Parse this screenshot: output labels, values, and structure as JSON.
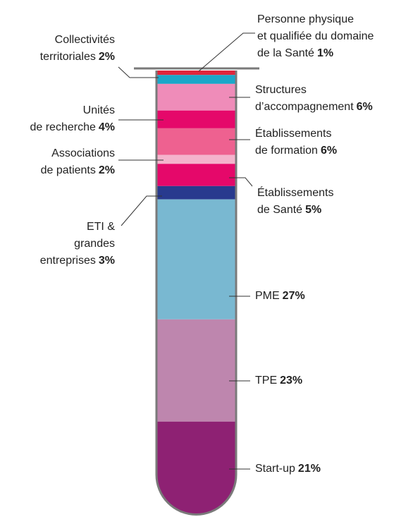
{
  "chart_data": {
    "type": "stacked-tube",
    "categories": [
      [
        "Personne physique",
        "et qualifiée du domaine",
        "de la Santé"
      ],
      [
        "Collectivités",
        "territoriales"
      ],
      [
        "Structures",
        "d’accompagnement"
      ],
      [
        "Unités",
        "de recherche"
      ],
      [
        "Établissements",
        "de formation"
      ],
      [
        "Associations",
        "de patients"
      ],
      [
        "Établissements",
        "de Santé"
      ],
      [
        "ETI &",
        "grandes",
        "entreprises"
      ],
      [
        "PME"
      ],
      [
        "TPE"
      ],
      [
        "Start-up"
      ]
    ],
    "values": [
      1,
      2,
      6,
      4,
      6,
      2,
      5,
      3,
      27,
      23,
      21
    ],
    "value_labels": [
      "1%",
      "2%",
      "6%",
      "4%",
      "6%",
      "2%",
      "5%",
      "3%",
      "27%",
      "23%",
      "21%"
    ],
    "colors": [
      "#e0263c",
      "#1ba7c9",
      "#ef8cb9",
      "#e5086a",
      "#ee6190",
      "#f4b3cc",
      "#e5086a",
      "#283a8e",
      "#79b8d1",
      "#be86ae",
      "#8e2173"
    ]
  }
}
